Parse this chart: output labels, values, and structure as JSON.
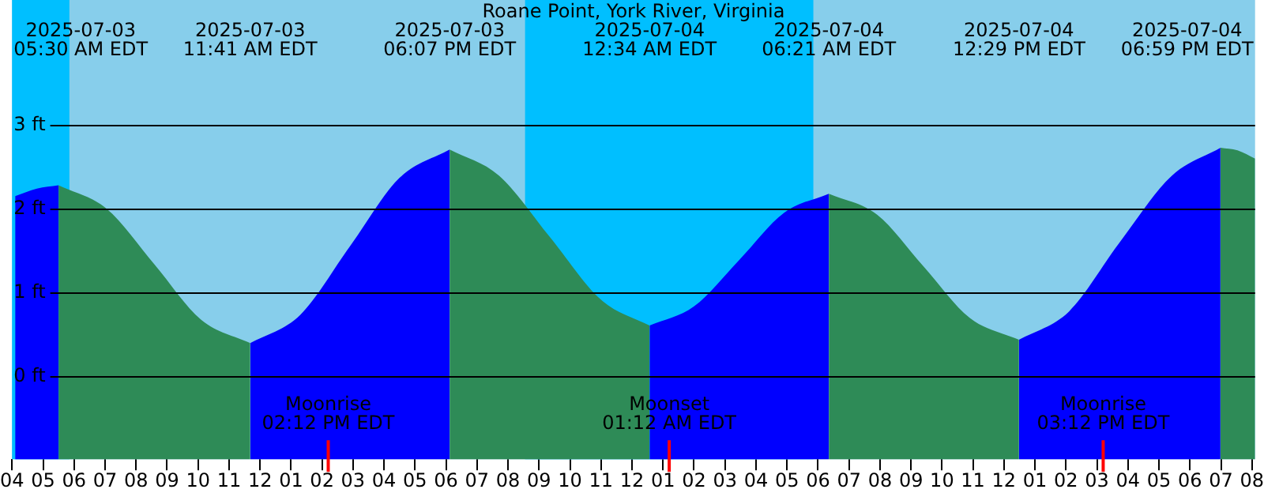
{
  "chart_data": {
    "type": "area",
    "title": "Roane Point, York River, Virginia",
    "xlim": [
      "2025-07-03T04:00",
      "2025-07-04T20:06"
    ],
    "ylim": [
      -1,
      4.5
    ],
    "yticks": [
      {
        "value": 0,
        "label": "0 ft"
      },
      {
        "value": 1,
        "label": "1 ft"
      },
      {
        "value": 2,
        "label": "2 ft"
      },
      {
        "value": 3,
        "label": "3 ft"
      }
    ],
    "xticks": [
      {
        "value": "2025-07-03T04:00",
        "label": "04"
      },
      {
        "value": "2025-07-03T05:00",
        "label": "05"
      },
      {
        "value": "2025-07-03T06:00",
        "label": "06"
      },
      {
        "value": "2025-07-03T07:00",
        "label": "07"
      },
      {
        "value": "2025-07-03T08:00",
        "label": "08"
      },
      {
        "value": "2025-07-03T09:00",
        "label": "09"
      },
      {
        "value": "2025-07-03T10:00",
        "label": "10"
      },
      {
        "value": "2025-07-03T11:00",
        "label": "11"
      },
      {
        "value": "2025-07-03T12:00",
        "label": "12"
      },
      {
        "value": "2025-07-03T13:00",
        "label": "01"
      },
      {
        "value": "2025-07-03T14:00",
        "label": "02"
      },
      {
        "value": "2025-07-03T15:00",
        "label": "03"
      },
      {
        "value": "2025-07-03T16:00",
        "label": "04"
      },
      {
        "value": "2025-07-03T17:00",
        "label": "05"
      },
      {
        "value": "2025-07-03T18:00",
        "label": "06"
      },
      {
        "value": "2025-07-03T19:00",
        "label": "07"
      },
      {
        "value": "2025-07-03T20:00",
        "label": "08"
      },
      {
        "value": "2025-07-03T21:00",
        "label": "09"
      },
      {
        "value": "2025-07-03T22:00",
        "label": "10"
      },
      {
        "value": "2025-07-03T23:00",
        "label": "11"
      },
      {
        "value": "2025-07-04T00:00",
        "label": "12"
      },
      {
        "value": "2025-07-04T01:00",
        "label": "01"
      },
      {
        "value": "2025-07-04T02:00",
        "label": "02"
      },
      {
        "value": "2025-07-04T03:00",
        "label": "03"
      },
      {
        "value": "2025-07-04T04:00",
        "label": "04"
      },
      {
        "value": "2025-07-04T05:00",
        "label": "05"
      },
      {
        "value": "2025-07-04T06:00",
        "label": "06"
      },
      {
        "value": "2025-07-04T07:00",
        "label": "07"
      },
      {
        "value": "2025-07-04T08:00",
        "label": "08"
      },
      {
        "value": "2025-07-04T09:00",
        "label": "09"
      },
      {
        "value": "2025-07-04T10:00",
        "label": "10"
      },
      {
        "value": "2025-07-04T11:00",
        "label": "11"
      },
      {
        "value": "2025-07-04T12:00",
        "label": "12"
      },
      {
        "value": "2025-07-04T13:00",
        "label": "01"
      },
      {
        "value": "2025-07-04T14:00",
        "label": "02"
      },
      {
        "value": "2025-07-04T15:00",
        "label": "03"
      },
      {
        "value": "2025-07-04T16:00",
        "label": "04"
      },
      {
        "value": "2025-07-04T17:00",
        "label": "05"
      },
      {
        "value": "2025-07-04T18:00",
        "label": "06"
      },
      {
        "value": "2025-07-04T19:00",
        "label": "07"
      },
      {
        "value": "2025-07-04T20:00",
        "label": "08"
      }
    ],
    "grid": "y",
    "legend": false,
    "marker": "none",
    "bands": [
      {
        "axis": "x",
        "from": "2025-07-03T04:00",
        "to": "2025-07-03T05:51",
        "color": "#00bfff"
      },
      {
        "axis": "x",
        "from": "2025-07-03T20:33",
        "to": "2025-07-04T05:51",
        "color": "#00bfff"
      }
    ],
    "ref_lines": [
      {
        "axis": "x",
        "value": "2025-07-03T14:12",
        "label": "Moonrise\n02:12 PM EDT",
        "color": "#ff0000"
      },
      {
        "axis": "x",
        "value": "2025-07-04T01:12",
        "label": "Moonset\n01:12 AM EDT",
        "color": "#ff0000"
      },
      {
        "axis": "x",
        "value": "2025-07-04T15:12",
        "label": "Moonrise\n03:12 PM EDT",
        "color": "#ff0000"
      }
    ],
    "series": [
      {
        "color": "#0000ff",
        "x": [
          "2025-07-03T04:06",
          "2025-07-03T04:48",
          "2025-07-03T05:30"
        ],
        "values": [
          2.15,
          2.24,
          2.28
        ]
      },
      {
        "color": "#2e8b57",
        "x": [
          "2025-07-03T05:30",
          "2025-07-03T07:03",
          "2025-07-03T08:36",
          "2025-07-03T10:06",
          "2025-07-03T11:41"
        ],
        "values": [
          2.28,
          2.0,
          1.33,
          0.67,
          0.39
        ]
      },
      {
        "color": "#0000ff",
        "x": [
          "2025-07-03T11:41",
          "2025-07-03T13:18",
          "2025-07-03T14:54",
          "2025-07-03T16:30",
          "2025-07-03T18:07"
        ],
        "values": [
          0.39,
          0.73,
          1.55,
          2.37,
          2.71
        ]
      },
      {
        "color": "#2e8b57",
        "x": [
          "2025-07-03T18:07",
          "2025-07-03T19:42",
          "2025-07-03T21:21",
          "2025-07-03T23:00",
          "2025-07-04T00:34"
        ],
        "values": [
          2.71,
          2.4,
          1.66,
          0.91,
          0.6
        ]
      },
      {
        "color": "#0000ff",
        "x": [
          "2025-07-04T00:34",
          "2025-07-04T02:00",
          "2025-07-04T03:28",
          "2025-07-04T04:54",
          "2025-07-04T06:21"
        ],
        "values": [
          0.6,
          0.83,
          1.39,
          1.95,
          2.18
        ]
      },
      {
        "color": "#2e8b57",
        "x": [
          "2025-07-04T06:21",
          "2025-07-04T07:54",
          "2025-07-04T09:24",
          "2025-07-04T10:54",
          "2025-07-04T12:29"
        ],
        "values": [
          2.18,
          1.93,
          1.31,
          0.69,
          0.43
        ]
      },
      {
        "color": "#0000ff",
        "x": [
          "2025-07-04T12:29",
          "2025-07-04T14:06",
          "2025-07-04T15:42",
          "2025-07-04T17:24",
          "2025-07-04T18:59"
        ],
        "values": [
          0.43,
          0.77,
          1.58,
          2.39,
          2.73
        ]
      },
      {
        "color": "#2e8b57",
        "x": [
          "2025-07-04T18:59",
          "2025-07-04T19:32",
          "2025-07-04T20:06"
        ],
        "values": [
          2.73,
          2.7,
          2.6
        ]
      }
    ],
    "annotations": [
      "2025-07-03\n05:30 AM EDT",
      "2025-07-03\n11:41 AM EDT",
      "2025-07-03\n06:07 PM EDT",
      "2025-07-04\n12:34 AM EDT",
      "2025-07-04\n06:21 AM EDT",
      "2025-07-04\n12:29 PM EDT",
      "2025-07-04\n06:59 PM EDT"
    ]
  }
}
